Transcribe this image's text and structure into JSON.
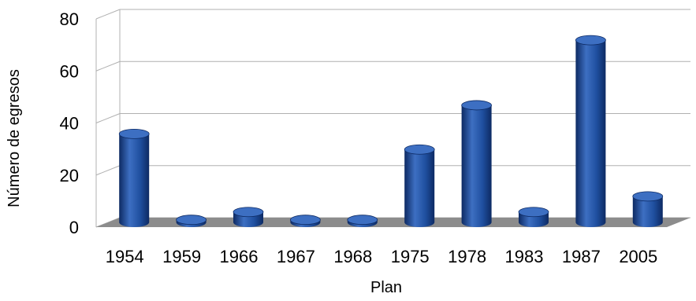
{
  "chart_data": {
    "type": "bar",
    "style": "3d-cylinder",
    "categories": [
      "1954",
      "1959",
      "1966",
      "1967",
      "1968",
      "1975",
      "1978",
      "1983",
      "1987",
      "2005"
    ],
    "series": [
      {
        "values": [
          34,
          1,
          4,
          1,
          1,
          28,
          45,
          4,
          70,
          10
        ]
      }
    ],
    "xlabel": "Plan",
    "ylabel": "Número de egresos",
    "ylim": [
      0,
      80
    ],
    "yticks": [
      "0",
      "20",
      "40",
      "60",
      "80"
    ],
    "grid": true,
    "colors": {
      "bar": "#1f4f9f",
      "bar_dark": "#0d2a63",
      "bar_light": "#3d6fc2",
      "floor": "#8c8c8c",
      "grid": "#b0b0b0"
    }
  }
}
